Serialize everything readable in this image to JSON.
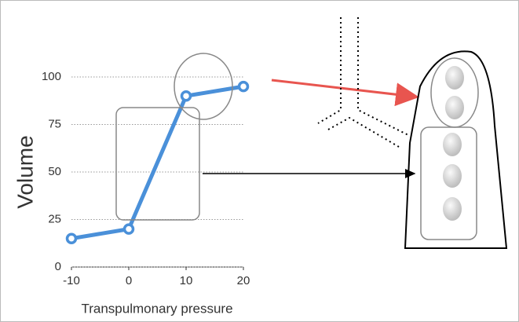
{
  "chart_data": {
    "type": "line",
    "x_label": "Transpulmonary pressure",
    "y_label": "Volume",
    "x": [
      -10,
      0,
      10,
      20
    ],
    "series": [
      {
        "color": "#4a90d9",
        "values": [
          15,
          20,
          90,
          95
        ]
      }
    ],
    "xlim": [
      -10,
      20
    ],
    "xticks": [
      -10,
      0,
      10,
      20
    ],
    "ylim": [
      0,
      100
    ],
    "yticks": [
      0,
      25,
      50,
      75,
      100
    ],
    "grid": true
  }
}
